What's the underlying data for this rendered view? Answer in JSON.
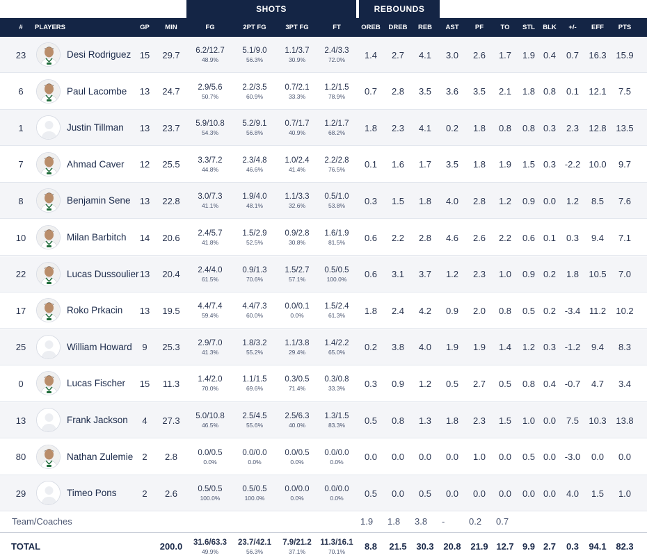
{
  "group_headers": {
    "shots": "SHOTS",
    "rebounds": "REBOUNDS"
  },
  "columns": {
    "num": "#",
    "players": "PLAYERS",
    "gp": "GP",
    "min": "MIN",
    "fg": "FG",
    "fg2": "2PT FG",
    "fg3": "3PT FG",
    "ft": "FT",
    "oreb": "OREB",
    "dreb": "DREB",
    "reb": "REB",
    "ast": "AST",
    "pf": "PF",
    "to": "TO",
    "stl": "STL",
    "blk": "BLK",
    "pm": "+/-",
    "eff": "EFF",
    "pts": "PTS"
  },
  "players": [
    {
      "num": "23",
      "name": "Desi Rodriguez",
      "photo": true,
      "gp": "15",
      "min": "29.7",
      "fg": "6.2/12.7",
      "fg_pct": "48.9%",
      "fg2": "5.1/9.0",
      "fg2_pct": "56.3%",
      "fg3": "1.1/3.7",
      "fg3_pct": "30.9%",
      "ft": "2.4/3.3",
      "ft_pct": "72.0%",
      "oreb": "1.4",
      "dreb": "2.7",
      "reb": "4.1",
      "ast": "3.0",
      "pf": "2.6",
      "to": "1.7",
      "stl": "1.9",
      "blk": "0.4",
      "pm": "0.7",
      "eff": "16.3",
      "pts": "15.9"
    },
    {
      "num": "6",
      "name": "Paul Lacombe",
      "photo": true,
      "gp": "13",
      "min": "24.7",
      "fg": "2.9/5.6",
      "fg_pct": "50.7%",
      "fg2": "2.2/3.5",
      "fg2_pct": "60.9%",
      "fg3": "0.7/2.1",
      "fg3_pct": "33.3%",
      "ft": "1.2/1.5",
      "ft_pct": "78.9%",
      "oreb": "0.7",
      "dreb": "2.8",
      "reb": "3.5",
      "ast": "3.6",
      "pf": "3.5",
      "to": "2.1",
      "stl": "1.8",
      "blk": "0.8",
      "pm": "0.1",
      "eff": "12.1",
      "pts": "7.5"
    },
    {
      "num": "1",
      "name": "Justin Tillman",
      "photo": false,
      "gp": "13",
      "min": "23.7",
      "fg": "5.9/10.8",
      "fg_pct": "54.3%",
      "fg2": "5.2/9.1",
      "fg2_pct": "56.8%",
      "fg3": "0.7/1.7",
      "fg3_pct": "40.9%",
      "ft": "1.2/1.7",
      "ft_pct": "68.2%",
      "oreb": "1.8",
      "dreb": "2.3",
      "reb": "4.1",
      "ast": "0.2",
      "pf": "1.8",
      "to": "0.8",
      "stl": "0.8",
      "blk": "0.3",
      "pm": "2.3",
      "eff": "12.8",
      "pts": "13.5"
    },
    {
      "num": "7",
      "name": "Ahmad Caver",
      "photo": true,
      "gp": "12",
      "min": "25.5",
      "fg": "3.3/7.2",
      "fg_pct": "44.8%",
      "fg2": "2.3/4.8",
      "fg2_pct": "46.6%",
      "fg3": "1.0/2.4",
      "fg3_pct": "41.4%",
      "ft": "2.2/2.8",
      "ft_pct": "76.5%",
      "oreb": "0.1",
      "dreb": "1.6",
      "reb": "1.7",
      "ast": "3.5",
      "pf": "1.8",
      "to": "1.9",
      "stl": "1.5",
      "blk": "0.3",
      "pm": "-2.2",
      "eff": "10.0",
      "pts": "9.7"
    },
    {
      "num": "8",
      "name": "Benjamin Sene",
      "photo": true,
      "gp": "13",
      "min": "22.8",
      "fg": "3.0/7.3",
      "fg_pct": "41.1%",
      "fg2": "1.9/4.0",
      "fg2_pct": "48.1%",
      "fg3": "1.1/3.3",
      "fg3_pct": "32.6%",
      "ft": "0.5/1.0",
      "ft_pct": "53.8%",
      "oreb": "0.3",
      "dreb": "1.5",
      "reb": "1.8",
      "ast": "4.0",
      "pf": "2.8",
      "to": "1.2",
      "stl": "0.9",
      "blk": "0.0",
      "pm": "1.2",
      "eff": "8.5",
      "pts": "7.6"
    },
    {
      "num": "10",
      "name": "Milan Barbitch",
      "photo": true,
      "gp": "14",
      "min": "20.6",
      "fg": "2.4/5.7",
      "fg_pct": "41.8%",
      "fg2": "1.5/2.9",
      "fg2_pct": "52.5%",
      "fg3": "0.9/2.8",
      "fg3_pct": "30.8%",
      "ft": "1.6/1.9",
      "ft_pct": "81.5%",
      "oreb": "0.6",
      "dreb": "2.2",
      "reb": "2.8",
      "ast": "4.6",
      "pf": "2.6",
      "to": "2.2",
      "stl": "0.6",
      "blk": "0.1",
      "pm": "0.3",
      "eff": "9.4",
      "pts": "7.1"
    },
    {
      "num": "22",
      "name": "Lucas Dussoulier",
      "photo": true,
      "gp": "13",
      "min": "20.4",
      "fg": "2.4/4.0",
      "fg_pct": "61.5%",
      "fg2": "0.9/1.3",
      "fg2_pct": "70.6%",
      "fg3": "1.5/2.7",
      "fg3_pct": "57.1%",
      "ft": "0.5/0.5",
      "ft_pct": "100.0%",
      "oreb": "0.6",
      "dreb": "3.1",
      "reb": "3.7",
      "ast": "1.2",
      "pf": "2.3",
      "to": "1.0",
      "stl": "0.9",
      "blk": "0.2",
      "pm": "1.8",
      "eff": "10.5",
      "pts": "7.0"
    },
    {
      "num": "17",
      "name": "Roko Prkacin",
      "photo": true,
      "gp": "13",
      "min": "19.5",
      "fg": "4.4/7.4",
      "fg_pct": "59.4%",
      "fg2": "4.4/7.3",
      "fg2_pct": "60.0%",
      "fg3": "0.0/0.1",
      "fg3_pct": "0.0%",
      "ft": "1.5/2.4",
      "ft_pct": "61.3%",
      "oreb": "1.8",
      "dreb": "2.4",
      "reb": "4.2",
      "ast": "0.9",
      "pf": "2.0",
      "to": "0.8",
      "stl": "0.5",
      "blk": "0.2",
      "pm": "-3.4",
      "eff": "11.2",
      "pts": "10.2"
    },
    {
      "num": "25",
      "name": "William Howard",
      "photo": false,
      "gp": "9",
      "min": "25.3",
      "fg": "2.9/7.0",
      "fg_pct": "41.3%",
      "fg2": "1.8/3.2",
      "fg2_pct": "55.2%",
      "fg3": "1.1/3.8",
      "fg3_pct": "29.4%",
      "ft": "1.4/2.2",
      "ft_pct": "65.0%",
      "oreb": "0.2",
      "dreb": "3.8",
      "reb": "4.0",
      "ast": "1.9",
      "pf": "1.9",
      "to": "1.4",
      "stl": "1.2",
      "blk": "0.3",
      "pm": "-1.2",
      "eff": "9.4",
      "pts": "8.3"
    },
    {
      "num": "0",
      "name": "Lucas Fischer",
      "photo": true,
      "gp": "15",
      "min": "11.3",
      "fg": "1.4/2.0",
      "fg_pct": "70.0%",
      "fg2": "1.1/1.5",
      "fg2_pct": "69.6%",
      "fg3": "0.3/0.5",
      "fg3_pct": "71.4%",
      "ft": "0.3/0.8",
      "ft_pct": "33.3%",
      "oreb": "0.3",
      "dreb": "0.9",
      "reb": "1.2",
      "ast": "0.5",
      "pf": "2.7",
      "to": "0.5",
      "stl": "0.8",
      "blk": "0.4",
      "pm": "-0.7",
      "eff": "4.7",
      "pts": "3.4"
    },
    {
      "num": "13",
      "name": "Frank Jackson",
      "photo": false,
      "gp": "4",
      "min": "27.3",
      "fg": "5.0/10.8",
      "fg_pct": "46.5%",
      "fg2": "2.5/4.5",
      "fg2_pct": "55.6%",
      "fg3": "2.5/6.3",
      "fg3_pct": "40.0%",
      "ft": "1.3/1.5",
      "ft_pct": "83.3%",
      "oreb": "0.5",
      "dreb": "0.8",
      "reb": "1.3",
      "ast": "1.8",
      "pf": "2.3",
      "to": "1.5",
      "stl": "1.0",
      "blk": "0.0",
      "pm": "7.5",
      "eff": "10.3",
      "pts": "13.8"
    },
    {
      "num": "80",
      "name": "Nathan Zulemie",
      "photo": true,
      "gp": "2",
      "min": "2.8",
      "fg": "0.0/0.5",
      "fg_pct": "0.0%",
      "fg2": "0.0/0.0",
      "fg2_pct": "0.0%",
      "fg3": "0.0/0.5",
      "fg3_pct": "0.0%",
      "ft": "0.0/0.0",
      "ft_pct": "0.0%",
      "oreb": "0.0",
      "dreb": "0.0",
      "reb": "0.0",
      "ast": "0.0",
      "pf": "1.0",
      "to": "0.0",
      "stl": "0.5",
      "blk": "0.0",
      "pm": "-3.0",
      "eff": "0.0",
      "pts": "0.0"
    },
    {
      "num": "29",
      "name": "Timeo Pons",
      "photo": false,
      "gp": "2",
      "min": "2.6",
      "fg": "0.5/0.5",
      "fg_pct": "100.0%",
      "fg2": "0.5/0.5",
      "fg2_pct": "100.0%",
      "fg3": "0.0/0.0",
      "fg3_pct": "0.0%",
      "ft": "0.0/0.0",
      "ft_pct": "0.0%",
      "oreb": "0.5",
      "dreb": "0.0",
      "reb": "0.5",
      "ast": "0.0",
      "pf": "0.0",
      "to": "0.0",
      "stl": "0.0",
      "blk": "0.0",
      "pm": "4.0",
      "eff": "1.5",
      "pts": "1.0"
    }
  ],
  "team_coaches": {
    "label": "Team/Coaches",
    "oreb": "1.9",
    "dreb": "1.8",
    "reb": "3.8",
    "ast": "-",
    "pf": "0.2",
    "to": "0.7"
  },
  "total": {
    "label": "TOTAL",
    "min": "200.0",
    "fg": "31.6/63.3",
    "fg_pct": "49.9%",
    "fg2": "23.7/42.1",
    "fg2_pct": "56.3%",
    "fg3": "7.9/21.2",
    "fg3_pct": "37.1%",
    "ft": "11.3/16.1",
    "ft_pct": "70.1%",
    "oreb": "8.8",
    "dreb": "21.5",
    "reb": "30.3",
    "ast": "20.8",
    "pf": "21.9",
    "to": "12.7",
    "stl": "9.9",
    "blk": "2.7",
    "pm": "0.3",
    "eff": "94.1",
    "pts": "82.3"
  },
  "colors": {
    "header_bg": "#142545",
    "alt_row": "#f4f5f8",
    "text": "#1b2a4a"
  }
}
